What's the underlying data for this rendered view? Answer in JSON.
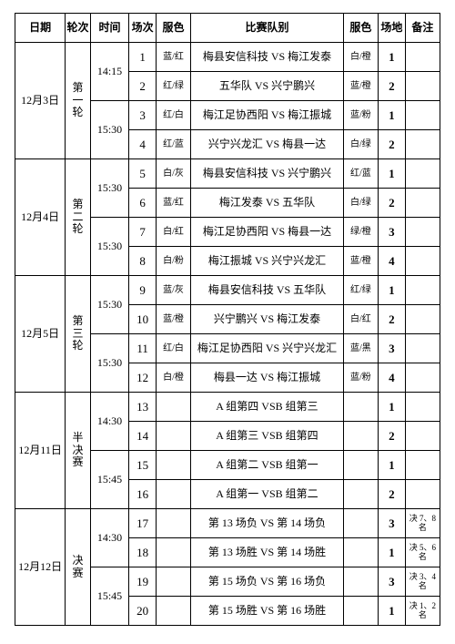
{
  "headers": {
    "date": "日期",
    "round": "轮次",
    "time": "时间",
    "match_no": "场次",
    "kit1": "服色",
    "teams": "比赛队别",
    "kit2": "服色",
    "venue": "场地",
    "note": "备注"
  },
  "days": [
    {
      "date": "12月3日",
      "round_label": "第\n一\n轮",
      "sessions": [
        {
          "time": "14:15",
          "matches": [
            {
              "no": "1",
              "kit1": "蓝/红",
              "teams": "梅县安信科技 VS 梅江发泰",
              "kit2": "白/橙",
              "venue": "1",
              "note": ""
            },
            {
              "no": "2",
              "kit1": "红/绿",
              "teams": "五华队 VS 兴宁鹏兴",
              "kit2": "蓝/橙",
              "venue": "2",
              "note": ""
            }
          ]
        },
        {
          "time": "15:30",
          "matches": [
            {
              "no": "3",
              "kit1": "红/白",
              "teams": "梅江足协西阳 VS 梅江振城",
              "kit2": "蓝/粉",
              "venue": "1",
              "note": ""
            },
            {
              "no": "4",
              "kit1": "红/蓝",
              "teams": "兴宁兴龙汇 VS 梅县一达",
              "kit2": "白/绿",
              "venue": "2",
              "note": ""
            }
          ]
        }
      ]
    },
    {
      "date": "12月4日",
      "round_label": "第\n二\n轮",
      "sessions": [
        {
          "time": "15:30",
          "matches": [
            {
              "no": "5",
              "kit1": "白/灰",
              "teams": "梅县安信科技 VS 兴宁鹏兴",
              "kit2": "红/蓝",
              "venue": "1",
              "note": ""
            },
            {
              "no": "6",
              "kit1": "蓝/红",
              "teams": "梅江发泰 VS 五华队",
              "kit2": "白/绿",
              "venue": "2",
              "note": ""
            }
          ]
        },
        {
          "time": "15:30",
          "matches": [
            {
              "no": "7",
              "kit1": "白/红",
              "teams": "梅江足协西阳 VS 梅县一达",
              "kit2": "绿/橙",
              "venue": "3",
              "note": ""
            },
            {
              "no": "8",
              "kit1": "白/粉",
              "teams": "梅江振城 VS 兴宁兴龙汇",
              "kit2": "蓝/橙",
              "venue": "4",
              "note": ""
            }
          ]
        }
      ]
    },
    {
      "date": "12月5日",
      "round_label": "第\n三\n轮",
      "sessions": [
        {
          "time": "15:30",
          "matches": [
            {
              "no": "9",
              "kit1": "蓝/灰",
              "teams": "梅县安信科技 VS 五华队",
              "kit2": "红/绿",
              "venue": "1",
              "note": ""
            },
            {
              "no": "10",
              "kit1": "蓝/橙",
              "teams": "兴宁鹏兴 VS 梅江发泰",
              "kit2": "白/红",
              "venue": "2",
              "note": ""
            }
          ]
        },
        {
          "time": "15:30",
          "matches": [
            {
              "no": "11",
              "kit1": "红/白",
              "teams": "梅江足协西阳 VS 兴宁兴龙汇",
              "kit2": "蓝/黑",
              "venue": "3",
              "note": ""
            },
            {
              "no": "12",
              "kit1": "白/橙",
              "teams": "梅县一达 VS 梅江振城",
              "kit2": "蓝/粉",
              "venue": "4",
              "note": ""
            }
          ]
        }
      ]
    },
    {
      "date": "12月11日",
      "round_label": "半\n决\n赛",
      "sessions": [
        {
          "time": "14:30",
          "matches": [
            {
              "no": "13",
              "kit1": "",
              "teams": "A 组第四 VSB 组第三",
              "kit2": "",
              "venue": "1",
              "note": ""
            },
            {
              "no": "14",
              "kit1": "",
              "teams": "A 组第三 VSB 组第四",
              "kit2": "",
              "venue": "2",
              "note": ""
            }
          ]
        },
        {
          "time": "15:45",
          "matches": [
            {
              "no": "15",
              "kit1": "",
              "teams": "A 组第二 VSB 组第一",
              "kit2": "",
              "venue": "1",
              "note": ""
            },
            {
              "no": "16",
              "kit1": "",
              "teams": "A 组第一 VSB 组第二",
              "kit2": "",
              "venue": "2",
              "note": ""
            }
          ]
        }
      ]
    },
    {
      "date": "12月12日",
      "round_label": "决\n赛",
      "sessions": [
        {
          "time": "14:30",
          "matches": [
            {
              "no": "17",
              "kit1": "",
              "teams": "第 13 场负 VS 第 14 场负",
              "kit2": "",
              "venue": "3",
              "note": "决 7、8 名"
            },
            {
              "no": "18",
              "kit1": "",
              "teams": "第 13 场胜 VS 第 14 场胜",
              "kit2": "",
              "venue": "1",
              "note": "决 5、6 名"
            }
          ]
        },
        {
          "time": "15:45",
          "matches": [
            {
              "no": "19",
              "kit1": "",
              "teams": "第 15 场负 VS 第 16 场负",
              "kit2": "",
              "venue": "3",
              "note": "决 3、4 名"
            },
            {
              "no": "20",
              "kit1": "",
              "teams": "第 15 场胜 VS 第 16 场胜",
              "kit2": "",
              "venue": "1",
              "note": "决 1、2 名"
            }
          ]
        }
      ]
    }
  ]
}
